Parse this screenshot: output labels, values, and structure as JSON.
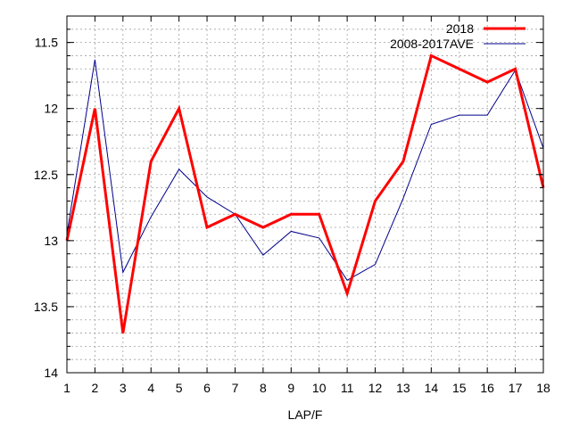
{
  "chart_data": {
    "type": "line",
    "xlabel": "LAP/F",
    "ylabel": "",
    "x": [
      1,
      2,
      3,
      4,
      5,
      6,
      7,
      8,
      9,
      10,
      11,
      12,
      13,
      14,
      15,
      16,
      17,
      18
    ],
    "xlim": [
      1,
      18
    ],
    "ylim": [
      14,
      11.3
    ],
    "y_inverted": true,
    "yticks": [
      "11.5",
      "12",
      "12.5",
      "13",
      "13.5",
      "14"
    ],
    "xticks": [
      "1",
      "2",
      "3",
      "4",
      "5",
      "6",
      "7",
      "8",
      "9",
      "10",
      "11",
      "12",
      "13",
      "14",
      "15",
      "16",
      "17",
      "18"
    ],
    "grid": true,
    "legend_position": "top-right",
    "series": [
      {
        "name": "2018",
        "color": "#ff0000",
        "values": [
          13.0,
          12.0,
          13.7,
          12.4,
          12.0,
          12.9,
          12.8,
          12.9,
          12.8,
          12.8,
          13.4,
          12.7,
          12.4,
          11.6,
          11.7,
          11.8,
          11.7,
          12.6
        ]
      },
      {
        "name": "2008-2017AVE",
        "color": "#00008b",
        "values": [
          12.95,
          11.63,
          13.24,
          12.82,
          12.46,
          12.67,
          12.8,
          13.11,
          12.93,
          12.98,
          13.3,
          13.18,
          12.68,
          12.12,
          12.05,
          12.05,
          11.71,
          12.3
        ]
      }
    ]
  }
}
